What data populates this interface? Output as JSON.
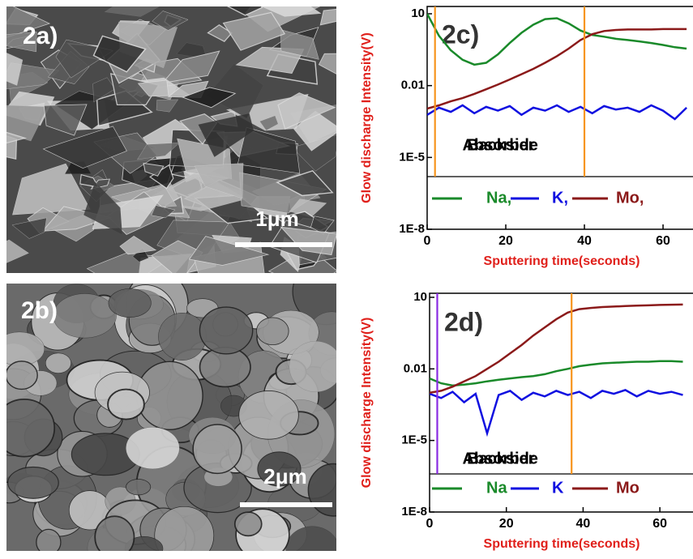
{
  "images": [
    {
      "label": "2a)",
      "scale_bar": "1μm"
    },
    {
      "label": "2b)",
      "scale_bar": "2μm"
    }
  ],
  "chart_data": [
    {
      "type": "line",
      "label": "2c)",
      "x_label": "Sputtering time(seconds)",
      "y_label": "Glow discharge Intensity(V)",
      "log_y": true,
      "xlim": [
        0,
        67
      ],
      "xticks": [
        0,
        20,
        40,
        60
      ],
      "ylim": [
        1e-08,
        10
      ],
      "yticks": [
        10,
        0.01,
        {
          "value": 1e-05,
          "label": "1E-5"
        },
        {
          "value": 1e-08,
          "label": "1E-8"
        }
      ],
      "annotations": [
        "Absorber",
        "Backside"
      ],
      "markers": [
        {
          "x": 2,
          "color": "#f7941d"
        },
        {
          "x": 40,
          "color": "#f7941d"
        }
      ],
      "x": [
        0,
        3,
        6,
        9,
        12,
        15,
        18,
        21,
        24,
        27,
        30,
        33,
        36,
        39,
        42,
        45,
        48,
        51,
        54,
        57,
        60,
        63,
        66
      ],
      "series": [
        {
          "name": "Na,",
          "color": "#1a8a2a",
          "values": [
            10,
            1.2,
            0.3,
            0.12,
            0.075,
            0.09,
            0.2,
            0.6,
            1.6,
            3.5,
            6,
            6.5,
            4,
            2,
            1.3,
            1.1,
            0.9,
            0.8,
            0.7,
            0.6,
            0.5,
            0.4,
            0.35
          ]
        },
        {
          "name": "K,",
          "color": "#1010e0",
          "values": [
            0.0006,
            0.0012,
            0.0008,
            0.0015,
            0.0007,
            0.0013,
            0.0009,
            0.0014,
            0.0006,
            0.0012,
            0.0009,
            0.0015,
            0.0008,
            0.0013,
            0.0007,
            0.0014,
            0.001,
            0.0012,
            0.0008,
            0.0015,
            0.0009,
            0.0004,
            0.0012
          ]
        },
        {
          "name": "Mo,",
          "color": "#8b1a1a",
          "values": [
            0.0011,
            0.0015,
            0.0022,
            0.003,
            0.0045,
            0.007,
            0.011,
            0.018,
            0.03,
            0.05,
            0.09,
            0.17,
            0.35,
            0.8,
            1.4,
            1.9,
            2.1,
            2.2,
            2.2,
            2.2,
            2.3,
            2.3,
            2.3
          ]
        }
      ]
    },
    {
      "type": "line",
      "label": "2d)",
      "x_label": "Sputtering time(seconds)",
      "y_label": "Glow discharge Intensity(V)",
      "log_y": true,
      "xlim": [
        0,
        68
      ],
      "xticks": [
        0,
        20,
        40,
        60
      ],
      "ylim": [
        1e-08,
        10
      ],
      "yticks": [
        10,
        0.01,
        {
          "value": 1e-05,
          "label": "1E-5"
        },
        {
          "value": 1e-08,
          "label": "1E-8"
        }
      ],
      "annotations": [
        "Absorber",
        "Backside"
      ],
      "markers": [
        {
          "x": 2,
          "color": "#8a2be2"
        },
        {
          "x": 37,
          "color": "#f7941d"
        }
      ],
      "x": [
        0,
        3,
        6,
        9,
        12,
        15,
        18,
        21,
        24,
        27,
        30,
        33,
        36,
        39,
        42,
        45,
        48,
        51,
        54,
        57,
        60,
        63,
        66
      ],
      "series": [
        {
          "name": "Na",
          "color": "#1a8a2a",
          "values": [
            0.004,
            0.0025,
            0.002,
            0.0022,
            0.0025,
            0.003,
            0.0035,
            0.004,
            0.0045,
            0.005,
            0.006,
            0.008,
            0.01,
            0.013,
            0.015,
            0.017,
            0.018,
            0.019,
            0.02,
            0.02,
            0.021,
            0.021,
            0.02
          ]
        },
        {
          "name": "K",
          "color": "#1010e0",
          "values": [
            0.0009,
            0.0006,
            0.0011,
            0.0004,
            0.0009,
            2e-05,
            0.0008,
            0.0012,
            0.0005,
            0.001,
            0.0007,
            0.0012,
            0.0008,
            0.0011,
            0.0006,
            0.0012,
            0.0009,
            0.0013,
            0.0007,
            0.0012,
            0.0009,
            0.0011,
            0.0008
          ]
        },
        {
          "name": "Mo",
          "color": "#8b1a1a",
          "values": [
            0.001,
            0.0012,
            0.0018,
            0.003,
            0.005,
            0.01,
            0.02,
            0.045,
            0.1,
            0.25,
            0.55,
            1.2,
            2.3,
            3.2,
            3.6,
            3.9,
            4.1,
            4.3,
            4.5,
            4.6,
            4.8,
            4.9,
            5
          ]
        }
      ]
    }
  ]
}
